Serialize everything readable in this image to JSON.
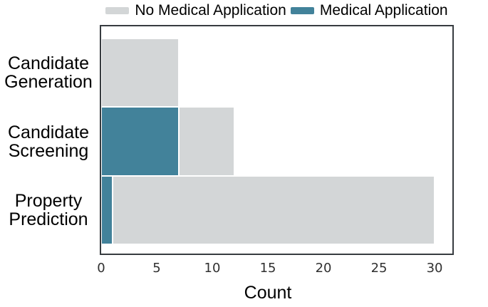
{
  "chart_data": {
    "type": "bar",
    "orientation": "horizontal",
    "stacked": true,
    "title": "",
    "xlabel": "Count",
    "ylabel": "",
    "categories": [
      "Candidate Generation",
      "Candidate Screening",
      "Property Prediction"
    ],
    "category_lines": [
      [
        "Candidate",
        "Generation"
      ],
      [
        "Candidate",
        "Screening"
      ],
      [
        "Property",
        "Prediction"
      ]
    ],
    "series": [
      {
        "name": "No Medical Application",
        "color": "#d3d6d7",
        "values": [
          7,
          5,
          29
        ]
      },
      {
        "name": "Medical Application",
        "color": "#42829a",
        "values": [
          0,
          7,
          1
        ]
      }
    ],
    "bar_totals": [
      7,
      12,
      30
    ],
    "bars": [
      {
        "category": "Candidate Generation",
        "segments": [
          {
            "series": "No Medical Application",
            "from": 0,
            "to": 7
          }
        ]
      },
      {
        "category": "Candidate Screening",
        "segments": [
          {
            "series": "Medical Application",
            "from": 0,
            "to": 7
          },
          {
            "series": "No Medical Application",
            "from": 7,
            "to": 12
          }
        ]
      },
      {
        "category": "Property Prediction",
        "segments": [
          {
            "series": "Medical Application",
            "from": 0,
            "to": 1
          },
          {
            "series": "No Medical Application",
            "from": 1,
            "to": 30
          }
        ]
      }
    ],
    "x_ticks": [
      0,
      5,
      10,
      15,
      20,
      25,
      30
    ],
    "xlim": [
      0,
      31.6
    ],
    "grid": false,
    "legend_position": "top"
  },
  "colors": {
    "axis_border": "#373c40",
    "tick_label": "#303030",
    "text": "#000000",
    "background": "#ffffff"
  }
}
